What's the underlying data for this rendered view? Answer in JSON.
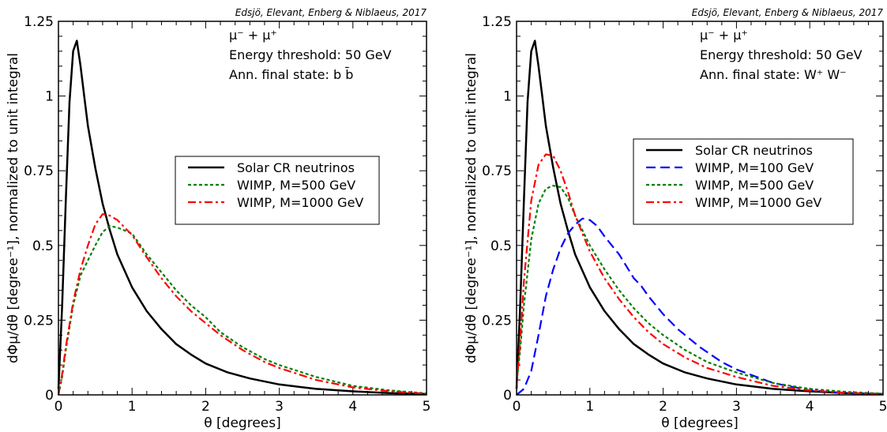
{
  "chart_data": [
    {
      "type": "line",
      "credit": "Edsjö, Elevant, Enberg & Niblaeus, 2017",
      "xlabel": "θ [degrees]",
      "ylabel": "dΦμ/dθ [degree⁻¹], normalized to unit integral",
      "xlim": [
        0,
        5
      ],
      "ylim": [
        0,
        1.25
      ],
      "xticks": [
        "0",
        "1",
        "2",
        "3",
        "4",
        "5"
      ],
      "yticks": [
        "0",
        "0.25",
        "0.5",
        "0.75",
        "1",
        "1.25"
      ],
      "annotations": [
        "μ⁻ + μ⁺",
        "Energy threshold: 50 GeV",
        "Ann. final state: b b̄"
      ],
      "legend_position": "center-right",
      "series": [
        {
          "name": "Solar CR neutrinos",
          "color": "#000000",
          "style": "solid",
          "x": [
            0,
            0.05,
            0.1,
            0.15,
            0.2,
            0.25,
            0.3,
            0.35,
            0.4,
            0.5,
            0.6,
            0.7,
            0.8,
            1.0,
            1.2,
            1.4,
            1.6,
            1.8,
            2.0,
            2.3,
            2.6,
            3.0,
            3.5,
            4.0,
            4.5,
            5.0
          ],
          "y": [
            0.02,
            0.3,
            0.65,
            0.98,
            1.15,
            1.185,
            1.1,
            1.0,
            0.9,
            0.76,
            0.64,
            0.55,
            0.47,
            0.36,
            0.28,
            0.22,
            0.17,
            0.135,
            0.105,
            0.075,
            0.055,
            0.035,
            0.02,
            0.012,
            0.006,
            0.003
          ]
        },
        {
          "name": "WIMP, M=500 GeV",
          "color": "#008000",
          "style": "dotted",
          "x": [
            0,
            0.05,
            0.1,
            0.2,
            0.3,
            0.4,
            0.5,
            0.6,
            0.7,
            0.8,
            0.9,
            1.0,
            1.2,
            1.4,
            1.6,
            1.8,
            2.0,
            2.2,
            2.5,
            2.8,
            3.0,
            3.5,
            4.0,
            4.5,
            5.0
          ],
          "y": [
            0.0,
            0.06,
            0.15,
            0.3,
            0.4,
            0.45,
            0.5,
            0.545,
            0.565,
            0.56,
            0.55,
            0.54,
            0.47,
            0.41,
            0.35,
            0.3,
            0.26,
            0.21,
            0.16,
            0.12,
            0.1,
            0.06,
            0.03,
            0.015,
            0.005
          ]
        },
        {
          "name": "WIMP, M=1000 GeV",
          "color": "#ff0000",
          "style": "dashdot",
          "x": [
            0,
            0.05,
            0.1,
            0.2,
            0.3,
            0.4,
            0.5,
            0.6,
            0.7,
            0.8,
            0.9,
            1.0,
            1.2,
            1.4,
            1.6,
            1.8,
            2.0,
            2.2,
            2.5,
            2.8,
            3.0,
            3.5,
            4.0,
            4.5,
            5.0
          ],
          "y": [
            0.0,
            0.07,
            0.16,
            0.31,
            0.42,
            0.5,
            0.57,
            0.605,
            0.6,
            0.585,
            0.56,
            0.535,
            0.46,
            0.39,
            0.33,
            0.28,
            0.24,
            0.2,
            0.15,
            0.11,
            0.09,
            0.05,
            0.025,
            0.012,
            0.004
          ]
        }
      ]
    },
    {
      "type": "line",
      "credit": "Edsjö, Elevant, Enberg & Niblaeus, 2017",
      "xlabel": "θ [degrees]",
      "ylabel": "dΦμ/dθ [degree⁻¹], normalized to unit integral",
      "xlim": [
        0,
        5
      ],
      "ylim": [
        0,
        1.25
      ],
      "xticks": [
        "0",
        "1",
        "2",
        "3",
        "4",
        "5"
      ],
      "yticks": [
        "0",
        "0.25",
        "0.5",
        "0.75",
        "1",
        "1.25"
      ],
      "annotations": [
        "μ⁻ + μ⁺",
        "Energy threshold: 50 GeV",
        "Ann. final state: W⁺ W⁻"
      ],
      "legend_position": "center-right",
      "series": [
        {
          "name": "Solar CR neutrinos",
          "color": "#000000",
          "style": "solid",
          "x": [
            0,
            0.05,
            0.1,
            0.15,
            0.2,
            0.25,
            0.3,
            0.35,
            0.4,
            0.5,
            0.6,
            0.7,
            0.8,
            1.0,
            1.2,
            1.4,
            1.6,
            1.8,
            2.0,
            2.3,
            2.6,
            3.0,
            3.5,
            4.0,
            4.5,
            5.0
          ],
          "y": [
            0.02,
            0.3,
            0.65,
            0.98,
            1.15,
            1.185,
            1.1,
            1.0,
            0.9,
            0.76,
            0.64,
            0.55,
            0.47,
            0.36,
            0.28,
            0.22,
            0.17,
            0.135,
            0.105,
            0.075,
            0.055,
            0.035,
            0.02,
            0.012,
            0.006,
            0.003
          ]
        },
        {
          "name": "WIMP, M=100 GeV",
          "color": "#0000ff",
          "style": "dashed",
          "x": [
            0,
            0.1,
            0.2,
            0.3,
            0.4,
            0.5,
            0.6,
            0.7,
            0.8,
            0.9,
            1.0,
            1.1,
            1.2,
            1.4,
            1.6,
            1.7,
            1.8,
            2.0,
            2.2,
            2.5,
            2.8,
            3.0,
            3.5,
            4.0,
            4.5,
            5.0
          ],
          "y": [
            0.0,
            0.02,
            0.08,
            0.2,
            0.33,
            0.42,
            0.49,
            0.54,
            0.57,
            0.59,
            0.585,
            0.565,
            0.53,
            0.47,
            0.39,
            0.365,
            0.33,
            0.27,
            0.22,
            0.16,
            0.11,
            0.085,
            0.04,
            0.015,
            0.006,
            0.002
          ]
        },
        {
          "name": "WIMP, M=500 GeV",
          "color": "#008000",
          "style": "dotted",
          "x": [
            0,
            0.05,
            0.1,
            0.2,
            0.3,
            0.4,
            0.5,
            0.6,
            0.7,
            0.8,
            1.0,
            1.2,
            1.4,
            1.6,
            1.8,
            2.0,
            2.3,
            2.6,
            3.0,
            3.5,
            4.0,
            4.5,
            5.0
          ],
          "y": [
            0.04,
            0.15,
            0.3,
            0.52,
            0.64,
            0.69,
            0.7,
            0.695,
            0.66,
            0.6,
            0.5,
            0.42,
            0.35,
            0.29,
            0.24,
            0.2,
            0.15,
            0.11,
            0.075,
            0.04,
            0.02,
            0.01,
            0.004
          ]
        },
        {
          "name": "WIMP, M=1000 GeV",
          "color": "#ff0000",
          "style": "dashdot",
          "x": [
            0,
            0.05,
            0.1,
            0.2,
            0.3,
            0.4,
            0.5,
            0.6,
            0.7,
            0.8,
            1.0,
            1.2,
            1.4,
            1.6,
            1.8,
            2.0,
            2.3,
            2.6,
            3.0,
            3.5,
            4.0,
            4.5,
            5.0
          ],
          "y": [
            0.03,
            0.18,
            0.38,
            0.65,
            0.77,
            0.805,
            0.8,
            0.75,
            0.68,
            0.6,
            0.48,
            0.39,
            0.32,
            0.26,
            0.21,
            0.17,
            0.125,
            0.09,
            0.06,
            0.03,
            0.015,
            0.007,
            0.002
          ]
        }
      ]
    }
  ]
}
